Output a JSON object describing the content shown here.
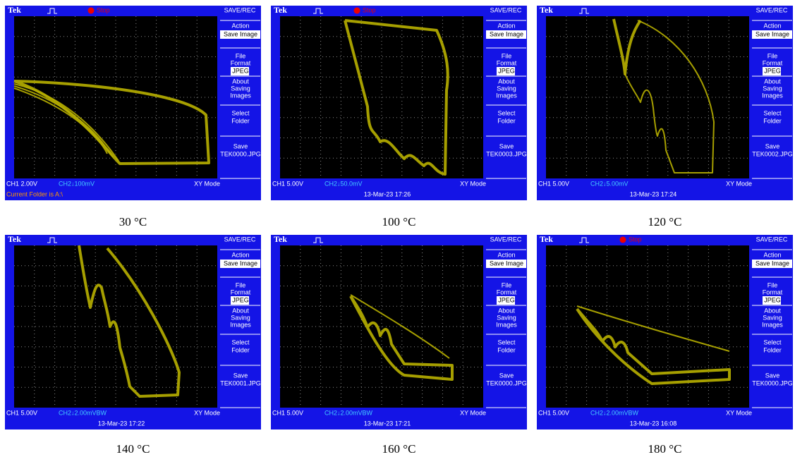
{
  "panels": [
    {
      "brand": "Tek",
      "status": "Stop",
      "header": "SAVE/REC",
      "menu": [
        "Action",
        "Save Image",
        "File",
        "Format",
        "JPEG",
        "About",
        "Saving",
        "Images",
        "Select",
        "Folder",
        "Save",
        "TEK0000.JPG"
      ],
      "ch1": "CH1  2.00V",
      "ch2": "CH2↓100mV",
      "mode": "XY Mode",
      "footer": "Current Folder is A:\\",
      "caption": "30 °C"
    },
    {
      "brand": "Tek",
      "status": "Stop",
      "header": "SAVE/REC",
      "menu": [
        "Action",
        "Save Image",
        "File",
        "Format",
        "JPEG",
        "About",
        "Saving",
        "Images",
        "Select",
        "Folder",
        "Save",
        "TEK0003.JPG"
      ],
      "ch1": "CH1  5.00V",
      "ch2": "CH2↓50.0mV",
      "mode": "XY Mode",
      "date": "13-Mar-23 17:26",
      "caption": "100 °C"
    },
    {
      "brand": "Tek",
      "header": "SAVE/REC",
      "menu": [
        "Action",
        "Save Image",
        "File",
        "Format",
        "JPEG",
        "About",
        "Saving",
        "Images",
        "Select",
        "Folder",
        "Save",
        "TEK0002.JPG"
      ],
      "ch1": "CH1  5.00V",
      "ch2": "CH2↓5.00mV",
      "mode": "XY Mode",
      "date": "13-Mar-23 17:24",
      "caption": "120 °C"
    },
    {
      "brand": "Tek",
      "header": "SAVE/REC",
      "menu": [
        "Action",
        "Save Image",
        "File",
        "Format",
        "JPEG",
        "About",
        "Saving",
        "Images",
        "Select",
        "Folder",
        "Save",
        "TEK0001.JPG"
      ],
      "ch1": "CH1  5.00V",
      "ch2": "CH2↓2.00mVBW",
      "mode": "XY Mode",
      "date": "13-Mar-23 17:22",
      "caption": "140 °C"
    },
    {
      "brand": "Tek",
      "header": "SAVE/REC",
      "menu": [
        "Action",
        "Save Image",
        "File",
        "Format",
        "JPEG",
        "About",
        "Saving",
        "Images",
        "Select",
        "Folder",
        "Save",
        "TEK0000.JPG"
      ],
      "ch1": "CH1  5.00V",
      "ch2": "CH2↓2.00mVBW",
      "mode": "XY Mode",
      "date": "13-Mar-23 17:21",
      "caption": "160 °C"
    },
    {
      "brand": "Tek",
      "status": "Stop",
      "header": "SAVE/REC",
      "menu": [
        "Action",
        "Save Image",
        "File",
        "Format",
        "JPEG",
        "About",
        "Saving",
        "Images",
        "Select",
        "Folder",
        "Save",
        "TEK0000.JPG"
      ],
      "ch1": "CH1  5.00V",
      "ch2": "CH2↓2.00mVBW",
      "mode": "XY Mode",
      "date": "13-Mar-23 16:08",
      "caption": "180 °C"
    }
  ]
}
